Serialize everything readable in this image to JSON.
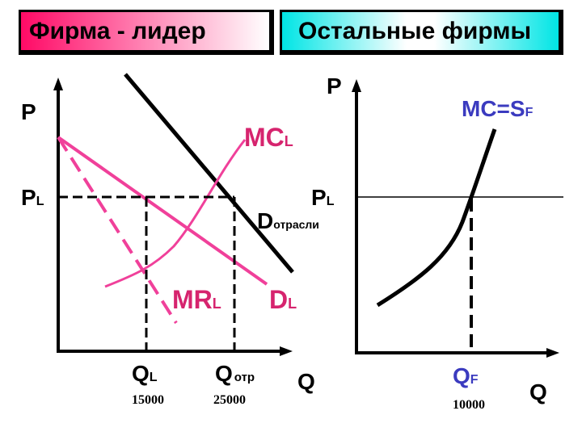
{
  "headers": {
    "leader": "Фирма - лидер",
    "others": "Остальные фирмы"
  },
  "colors": {
    "pink": "#f0409a",
    "magenta": "#d6246e",
    "blue": "#3b3bbf",
    "black": "#000000"
  },
  "left_graph": {
    "axis_y": "P",
    "axis_x": "Q",
    "price_label": {
      "main": "P",
      "sub": "L"
    },
    "mc_label": {
      "main": "MC",
      "sub": "L"
    },
    "mr_label": {
      "main": "MR",
      "sub": "L"
    },
    "d_leader_label": {
      "main": "D",
      "sub": "L"
    },
    "d_industry_label": {
      "main": "D",
      "sub": "отрасли"
    },
    "q_leader": {
      "main": "Q",
      "sub": "L",
      "value": "15000"
    },
    "q_industry": {
      "main": "Q",
      "sub": "отр",
      "value": "25000"
    }
  },
  "right_graph": {
    "axis_y": "P",
    "axis_x": "Q",
    "price_label": {
      "main": "P",
      "sub": "L"
    },
    "mc_label": {
      "main": "MC=S",
      "sub": "F"
    },
    "q_firm": {
      "main": "Q",
      "sub": "F",
      "value": "10000"
    }
  }
}
